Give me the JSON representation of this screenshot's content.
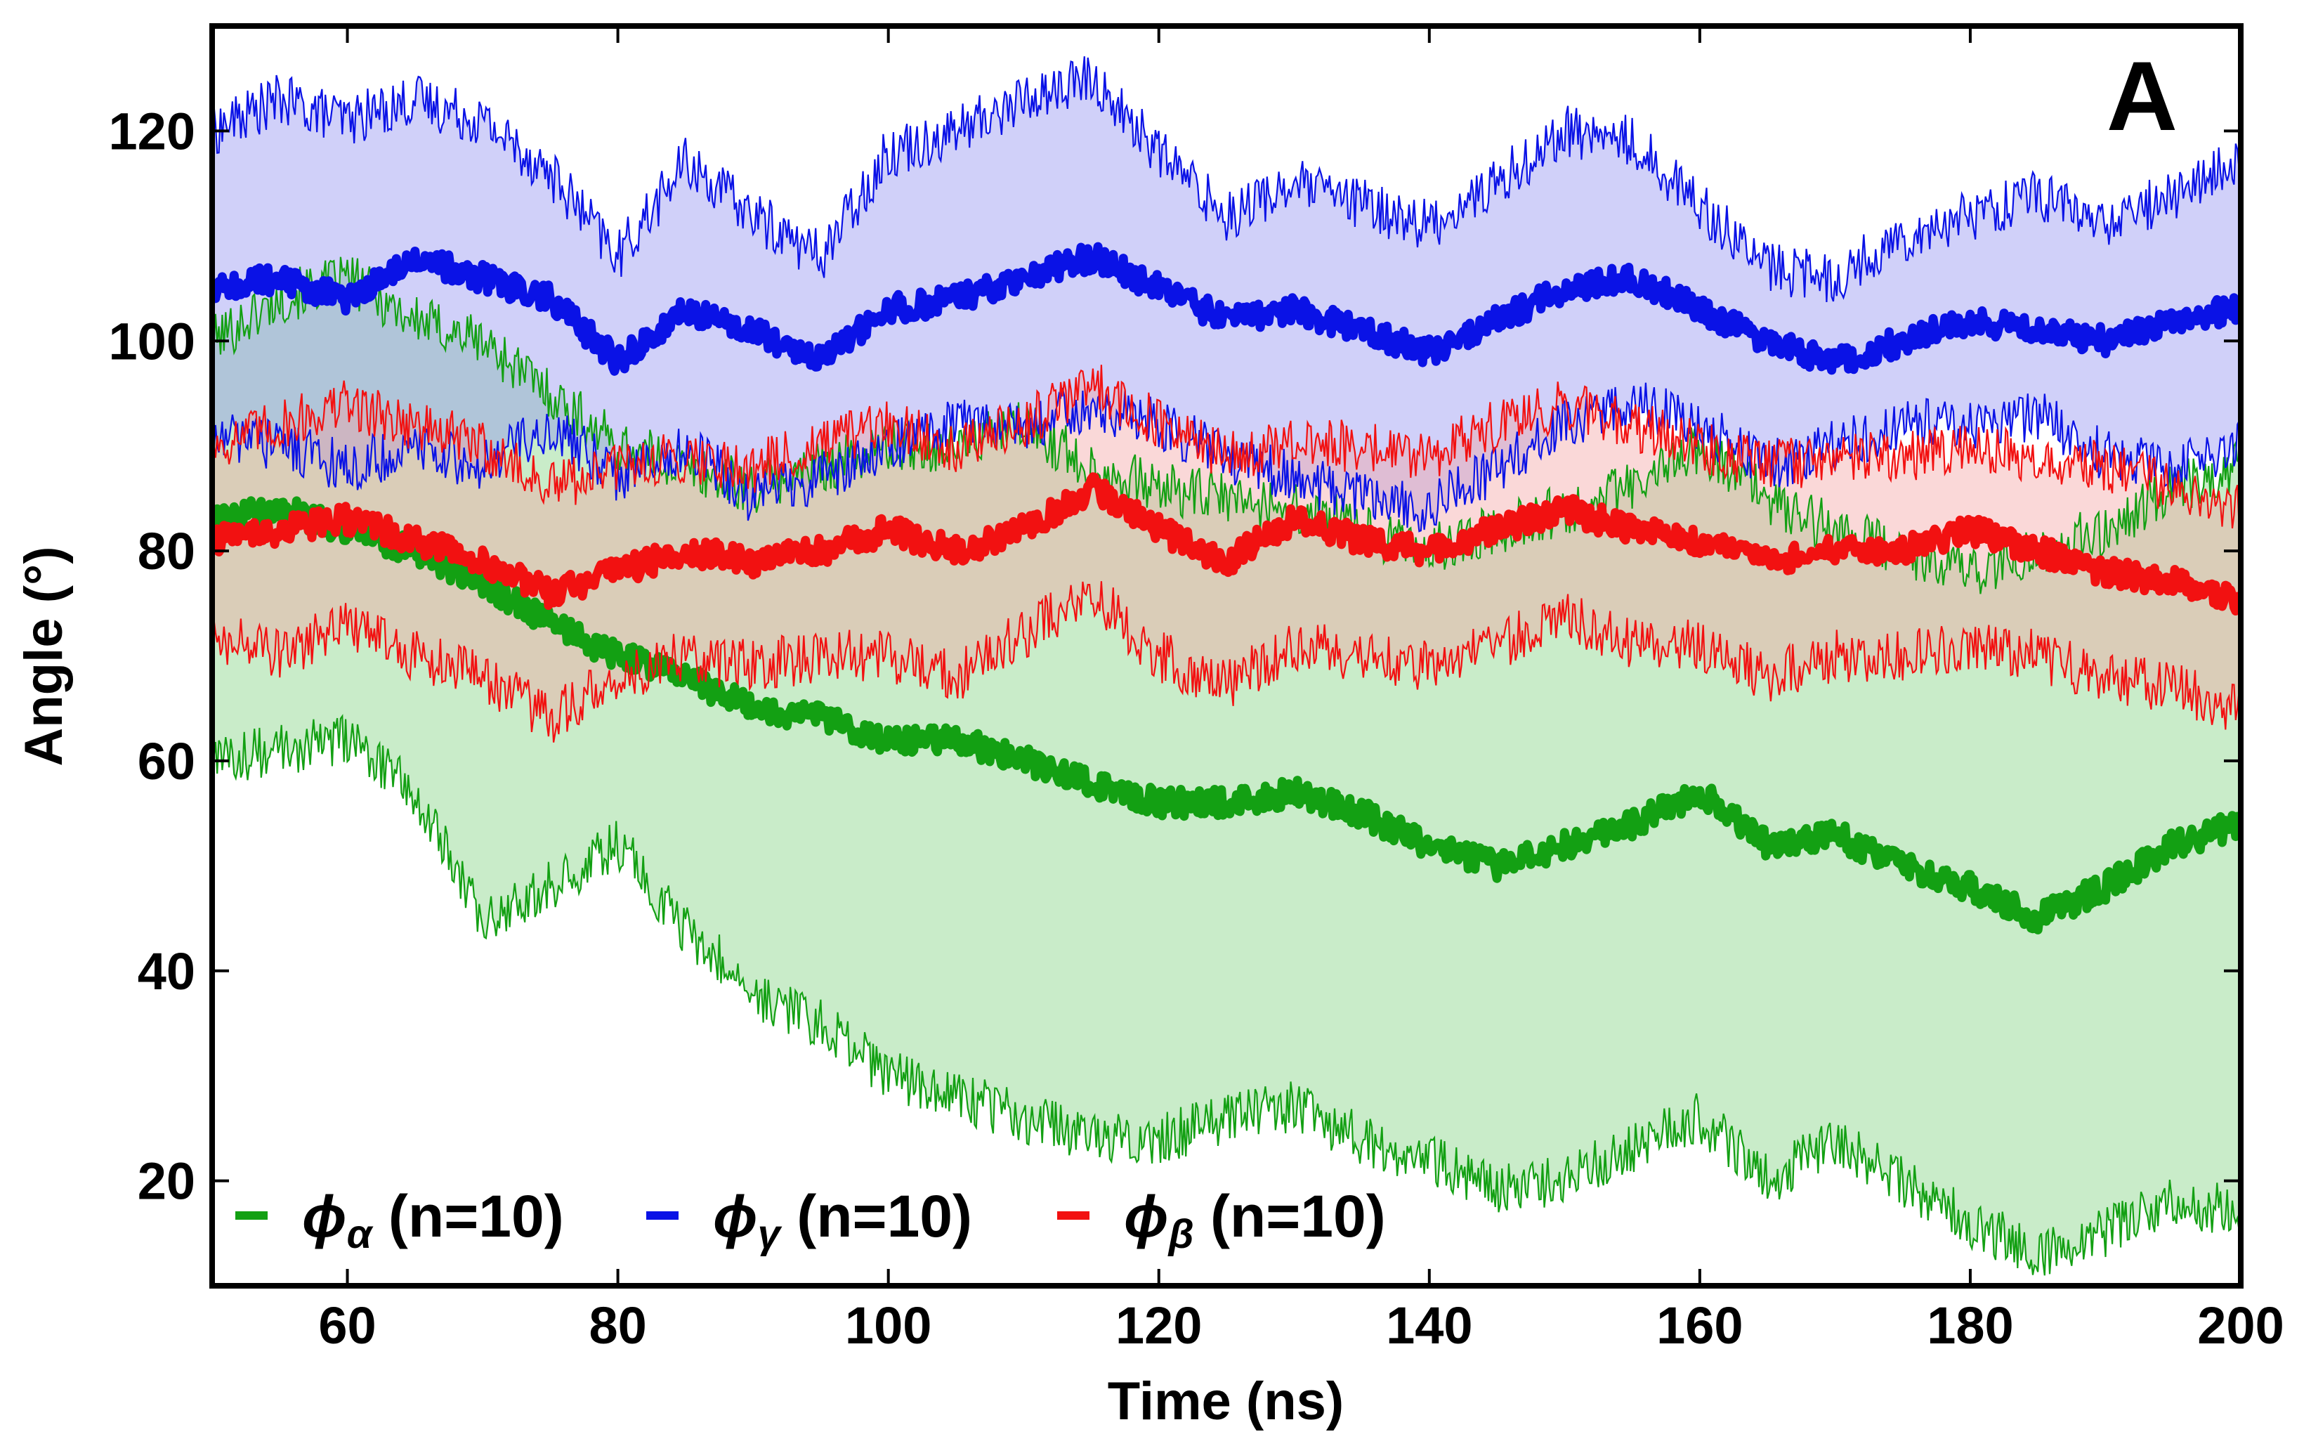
{
  "chart_data": {
    "type": "line",
    "title": "",
    "panel_label": "A",
    "xlabel": "Time (ns)",
    "ylabel": "Angle (°)",
    "xlim": [
      50,
      200
    ],
    "ylim": [
      10,
      130
    ],
    "xticks": [
      60,
      80,
      100,
      120,
      140,
      160,
      180,
      200
    ],
    "yticks": [
      20,
      40,
      60,
      80,
      100,
      120
    ],
    "legend_position": "bottom-left",
    "series": [
      {
        "name": "ϕα (n=10)",
        "legend_symbol": "ϕ",
        "legend_subscript": "α",
        "legend_suffix": " (n=10)",
        "color": "#13a013",
        "fill_color": "#7ed17e",
        "x": [
          50,
          55,
          60,
          65,
          70,
          75,
          80,
          85,
          90,
          95,
          100,
          105,
          110,
          115,
          120,
          125,
          130,
          135,
          140,
          145,
          150,
          155,
          160,
          165,
          170,
          175,
          180,
          185,
          190,
          195,
          200
        ],
        "mean": [
          83,
          84,
          82,
          80,
          77,
          73,
          70,
          68,
          65,
          64,
          62,
          62,
          60,
          58,
          56,
          56,
          57,
          55,
          52,
          50,
          52,
          54,
          57,
          52,
          53,
          50,
          48,
          45,
          48,
          52,
          54
        ],
        "upper": [
          100,
          104,
          106,
          102,
          100,
          95,
          90,
          88,
          86,
          88,
          90,
          90,
          92,
          88,
          86,
          85,
          84,
          82,
          80,
          82,
          84,
          86,
          90,
          85,
          82,
          80,
          78,
          80,
          82,
          86,
          88
        ],
        "lower": [
          60,
          61,
          62,
          57,
          45,
          48,
          52,
          44,
          38,
          35,
          30,
          28,
          26,
          24,
          24,
          26,
          27,
          24,
          22,
          19,
          20,
          23,
          26,
          20,
          24,
          20,
          16,
          13,
          15,
          18,
          17
        ]
      },
      {
        "name": "ϕγ (n=10)",
        "legend_symbol": "ϕ",
        "legend_subscript": "γ",
        "legend_suffix": " (n=10)",
        "color": "#0a12e6",
        "fill_color": "#8e8ef0",
        "x": [
          50,
          55,
          60,
          65,
          70,
          75,
          80,
          85,
          90,
          95,
          100,
          105,
          110,
          115,
          120,
          125,
          130,
          135,
          140,
          145,
          150,
          155,
          160,
          165,
          170,
          175,
          180,
          185,
          190,
          195,
          200
        ],
        "mean": [
          105,
          106,
          104,
          108,
          106,
          104,
          98,
          103,
          101,
          98,
          103,
          104,
          106,
          108,
          105,
          102,
          103,
          101,
          99,
          102,
          105,
          106,
          103,
          100,
          98,
          100,
          102,
          101,
          100,
          102,
          103
        ],
        "upper": [
          120,
          123,
          121,
          123,
          121,
          116,
          108,
          117,
          112,
          108,
          118,
          120,
          123,
          125,
          118,
          112,
          115,
          113,
          111,
          115,
          120,
          119,
          113,
          107,
          106,
          110,
          112,
          114,
          111,
          114,
          117
        ],
        "lower": [
          91,
          90,
          88,
          90,
          88,
          92,
          87,
          90,
          85,
          87,
          90,
          92,
          92,
          94,
          92,
          89,
          87,
          85,
          84,
          88,
          92,
          94,
          92,
          88,
          90,
          92,
          92,
          93,
          89,
          88,
          90
        ]
      },
      {
        "name": "ϕβ (n=10)",
        "legend_symbol": "ϕ",
        "legend_subscript": "β",
        "legend_suffix": " (n=10)",
        "color": "#f21111",
        "fill_color": "#f4a3a3",
        "x": [
          50,
          55,
          60,
          65,
          70,
          75,
          80,
          85,
          90,
          95,
          100,
          105,
          110,
          115,
          120,
          125,
          130,
          135,
          140,
          145,
          150,
          155,
          160,
          165,
          170,
          175,
          180,
          185,
          190,
          195,
          200
        ],
        "mean": [
          81,
          82,
          83,
          81,
          79,
          76,
          78,
          80,
          79,
          80,
          82,
          80,
          82,
          86,
          82,
          79,
          83,
          81,
          80,
          82,
          84,
          82,
          81,
          79,
          80,
          80,
          82,
          80,
          78,
          77,
          75
        ],
        "upper": [
          90,
          92,
          94,
          92,
          90,
          86,
          88,
          89,
          88,
          90,
          92,
          90,
          92,
          96,
          92,
          89,
          90,
          90,
          89,
          92,
          94,
          92,
          90,
          88,
          89,
          89,
          90,
          89,
          88,
          86,
          84
        ],
        "lower": [
          72,
          70,
          73,
          70,
          68,
          64,
          68,
          70,
          69,
          70,
          70,
          68,
          72,
          76,
          70,
          67,
          71,
          70,
          69,
          71,
          74,
          71,
          71,
          68,
          70,
          70,
          71,
          70,
          68,
          67,
          65
        ]
      }
    ]
  }
}
